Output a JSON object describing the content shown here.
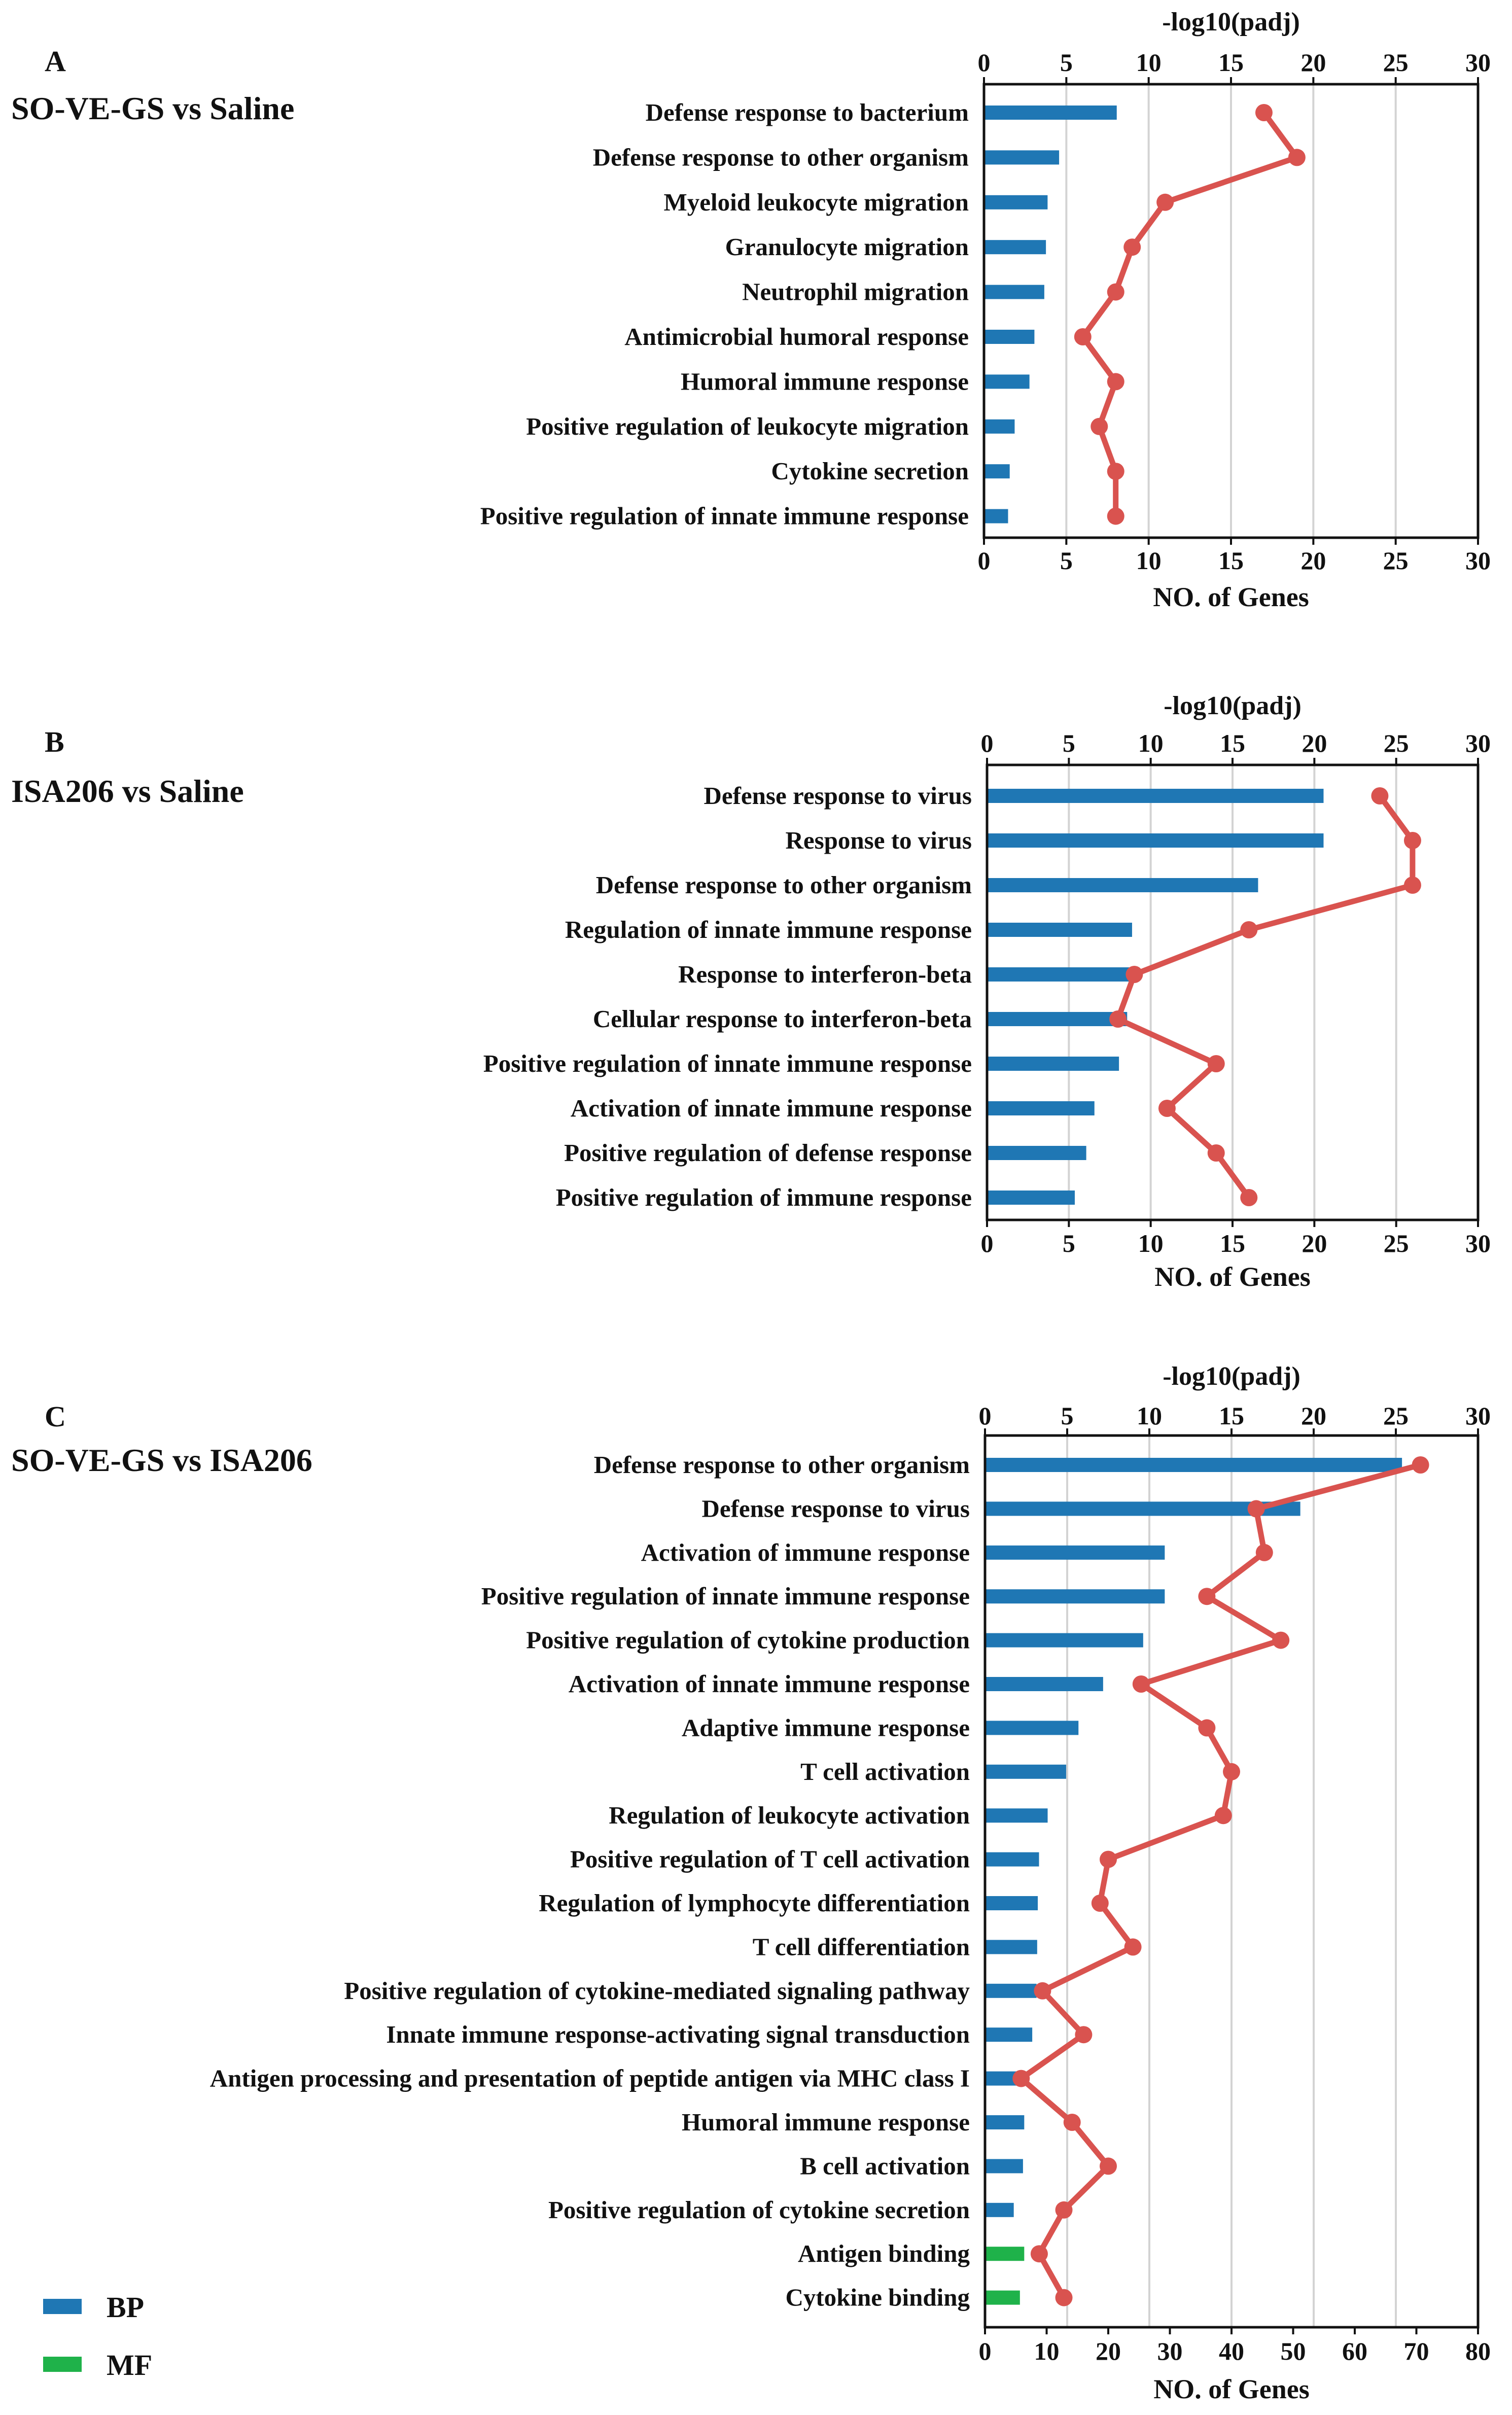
{
  "colors": {
    "bp": "#1f77b4",
    "mf": "#1fb24a",
    "line": "#d9534f",
    "grid": "#d3d3d3",
    "axis": "#111111"
  },
  "legend": [
    {
      "label": "BP",
      "color": "#1f77b4"
    },
    {
      "label": "MF",
      "color": "#1fb24a"
    }
  ],
  "chart_data": [
    {
      "type": "bar",
      "panel_letter": "A",
      "title": "SO-VE-GS vs Saline",
      "top_axis_label": "-log10(padj)",
      "xlabel": "NO. of Genes",
      "xlim_genes": [
        0,
        30
      ],
      "xticks_genes": [
        0,
        5,
        10,
        15,
        20,
        25,
        30
      ],
      "xlim_padj": [
        0,
        30
      ],
      "xticks_padj": [
        0,
        5,
        10,
        15,
        20,
        25,
        30
      ],
      "grid": true,
      "categories": [
        "Defense response to bacterium",
        "Defense response to other organism",
        "Myeloid leukocyte migration",
        "Granulocyte migration",
        "Neutrophil migration",
        "Antimicrobial humoral response",
        "Humoral immune response",
        "Positive regulation of leukocyte migration",
        "Cytokine secretion",
        "Positive regulation of innate immune response"
      ],
      "series": [
        {
          "name": "NO. of Genes",
          "kind": "bar",
          "values": [
            8,
            4.5,
            3.8,
            3.7,
            3.6,
            3,
            2.7,
            1.8,
            1.5,
            1.4
          ],
          "groups": [
            "BP",
            "BP",
            "BP",
            "BP",
            "BP",
            "BP",
            "BP",
            "BP",
            "BP",
            "BP"
          ]
        },
        {
          "name": "-log10(padj)",
          "kind": "line",
          "values": [
            17,
            19,
            11,
            9,
            8,
            6,
            8,
            7,
            8,
            8
          ]
        }
      ]
    },
    {
      "type": "bar",
      "panel_letter": "B",
      "title": "ISA206 vs Saline",
      "top_axis_label": "-log10(padj)",
      "xlabel": "NO. of Genes",
      "xlim_genes": [
        0,
        30
      ],
      "xticks_genes": [
        0,
        5,
        10,
        15,
        20,
        25,
        30
      ],
      "xlim_padj": [
        0,
        30
      ],
      "xticks_padj": [
        0,
        5,
        10,
        15,
        20,
        25,
        30
      ],
      "grid": true,
      "categories": [
        "Defense response to virus",
        "Response to virus",
        "Defense response to other organism",
        "Regulation of innate immune response",
        "Response to interferon-beta",
        "Cellular response to interferon-beta",
        "Positive regulation of innate immune response",
        "Activation of innate immune response",
        "Positive regulation of defense response",
        "Positive regulation of immune response"
      ],
      "series": [
        {
          "name": "NO. of Genes",
          "kind": "bar",
          "values": [
            20.5,
            20.5,
            16.5,
            8.8,
            8.8,
            8.5,
            8,
            6.5,
            6,
            5.3
          ],
          "groups": [
            "BP",
            "BP",
            "BP",
            "BP",
            "BP",
            "BP",
            "BP",
            "BP",
            "BP",
            "BP"
          ]
        },
        {
          "name": "-log10(padj)",
          "kind": "line",
          "values": [
            24,
            26,
            26,
            16,
            9,
            8,
            14,
            11,
            14,
            16
          ]
        }
      ]
    },
    {
      "type": "bar",
      "panel_letter": "C",
      "title": "SO-VE-GS vs ISA206",
      "top_axis_label": "-log10(padj)",
      "xlabel": "NO. of Genes",
      "xlim_genes": [
        0,
        80
      ],
      "xticks_genes": [
        0,
        10,
        20,
        30,
        40,
        50,
        60,
        70,
        80
      ],
      "xlim_padj": [
        0,
        30
      ],
      "xticks_padj": [
        0,
        5,
        10,
        15,
        20,
        25,
        30
      ],
      "grid": true,
      "categories": [
        "Defense response to other organism",
        "Defense response to virus",
        "Activation of immune response",
        "Positive regulation of innate immune response",
        "Positive regulation of cytokine production",
        "Activation of innate immune response",
        "Adaptive immune response",
        "T cell activation",
        "Regulation of leukocyte activation",
        "Positive regulation of T cell activation",
        "Regulation of lymphocyte differentiation",
        "T cell differentiation",
        "Positive regulation of cytokine-mediated signaling pathway",
        "Innate immune response-activating signal transduction",
        "Antigen processing and presentation of peptide antigen via MHC class I",
        "Humoral immune response",
        "B cell activation",
        "Positive regulation of cytokine secretion",
        "Antigen binding",
        "Cytokine binding"
      ],
      "series": [
        {
          "name": "NO. of Genes",
          "kind": "bar",
          "values": [
            67.5,
            51,
            29,
            29,
            25.5,
            19,
            15,
            13,
            10,
            8.6,
            8.4,
            8.3,
            8.2,
            7.5,
            6.3,
            6.2,
            6,
            4.5,
            6.2,
            5.5
          ],
          "groups": [
            "BP",
            "BP",
            "BP",
            "BP",
            "BP",
            "BP",
            "BP",
            "BP",
            "BP",
            "BP",
            "BP",
            "BP",
            "BP",
            "BP",
            "BP",
            "BP",
            "BP",
            "BP",
            "MF",
            "MF"
          ]
        },
        {
          "name": "-log10(padj)",
          "kind": "line",
          "values": [
            26.5,
            16.5,
            17,
            13.5,
            18,
            9.5,
            13.5,
            15,
            14.5,
            7.5,
            7,
            9,
            3.5,
            6,
            2.2,
            5.3,
            7.5,
            4.8,
            3.3,
            4.8
          ]
        }
      ]
    }
  ]
}
